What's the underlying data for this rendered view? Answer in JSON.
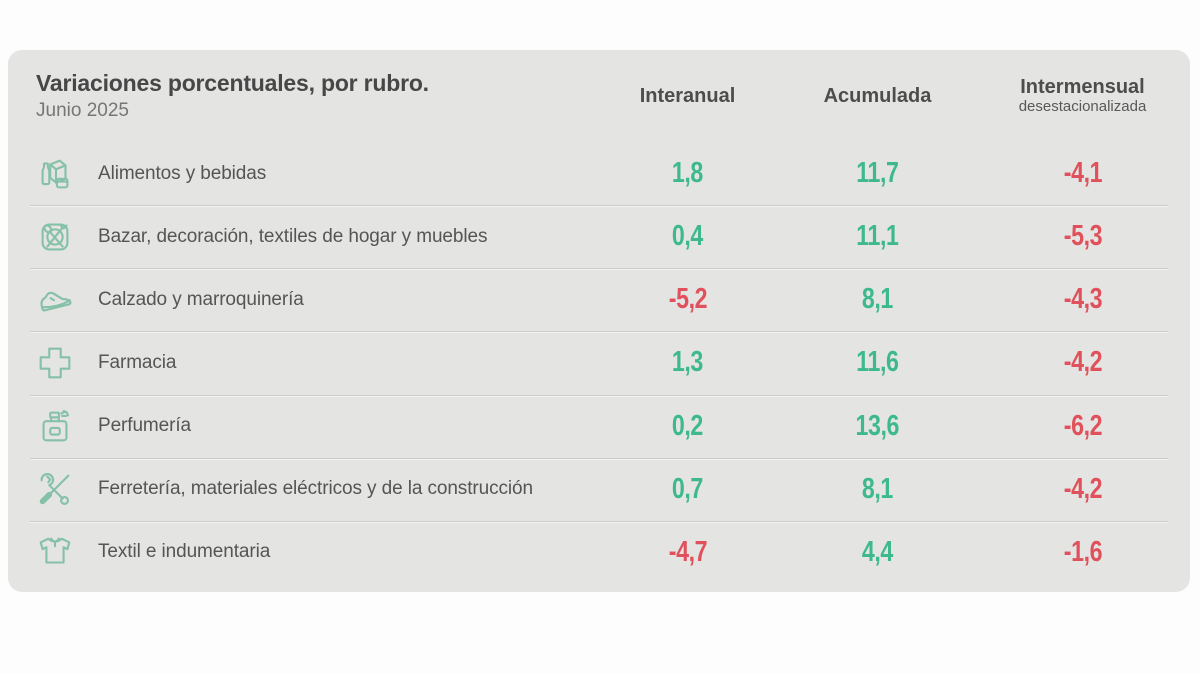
{
  "card": {
    "title": "Variaciones porcentuales, por rubro.",
    "subtitle": "Junio 2025",
    "columns": [
      {
        "label": "Interanual",
        "sublabel": ""
      },
      {
        "label": "Acumulada",
        "sublabel": ""
      },
      {
        "label": "Intermensual",
        "sublabel": "desestacionalizada"
      }
    ],
    "rows": [
      {
        "icon": "groceries-icon",
        "label": "Alimentos y bebidas",
        "values": [
          "1,8",
          "11,7",
          "-4,1"
        ]
      },
      {
        "icon": "bazar-icon",
        "label": "Bazar, decoración, textiles de hogar y muebles",
        "values": [
          "0,4",
          "11,1",
          "-5,3"
        ]
      },
      {
        "icon": "shoe-icon",
        "label": "Calzado y marroquinería",
        "values": [
          "-5,2",
          "8,1",
          "-4,3"
        ]
      },
      {
        "icon": "pharmacy-cross-icon",
        "label": "Farmacia",
        "values": [
          "1,3",
          "11,6",
          "-4,2"
        ]
      },
      {
        "icon": "perfume-icon",
        "label": "Perfumería",
        "values": [
          "0,2",
          "13,6",
          "-6,2"
        ]
      },
      {
        "icon": "tools-icon",
        "label": "Ferretería, materiales eléctricos y de la construcción",
        "values": [
          "0,7",
          "8,1",
          "-4,2"
        ]
      },
      {
        "icon": "tshirt-icon",
        "label": "Textil e indumentaria",
        "values": [
          "-4,7",
          "4,4",
          "-1,6"
        ]
      }
    ],
    "colors": {
      "positive": "#3eb98e",
      "negative": "#e0515b",
      "icon_stroke": "#85c0a9",
      "card_bg": "#e4e4e3"
    }
  },
  "chart_data": {
    "type": "table",
    "title": "Variaciones porcentuales, por rubro.",
    "subtitle": "Junio 2025",
    "columns": [
      "Interanual",
      "Acumulada",
      "Intermensual desestacionalizada"
    ],
    "rows": [
      {
        "category": "Alimentos y bebidas",
        "interanual": 1.8,
        "acumulada": 11.7,
        "intermensual_desestacionalizada": -4.1
      },
      {
        "category": "Bazar, decoración, textiles de hogar y muebles",
        "interanual": 0.4,
        "acumulada": 11.1,
        "intermensual_desestacionalizada": -5.3
      },
      {
        "category": "Calzado y marroquinería",
        "interanual": -5.2,
        "acumulada": 8.1,
        "intermensual_desestacionalizada": -4.3
      },
      {
        "category": "Farmacia",
        "interanual": 1.3,
        "acumulada": 11.6,
        "intermensual_desestacionalizada": -4.2
      },
      {
        "category": "Perfumería",
        "interanual": 0.2,
        "acumulada": 13.6,
        "intermensual_desestacionalizada": -6.2
      },
      {
        "category": "Ferretería, materiales eléctricos y de la construcción",
        "interanual": 0.7,
        "acumulada": 8.1,
        "intermensual_desestacionalizada": -4.2
      },
      {
        "category": "Textil e indumentaria",
        "interanual": -4.7,
        "acumulada": 4.4,
        "intermensual_desestacionalizada": -1.6
      }
    ],
    "value_color_rule": "negative values red, positive values green",
    "decimal_separator": ","
  }
}
